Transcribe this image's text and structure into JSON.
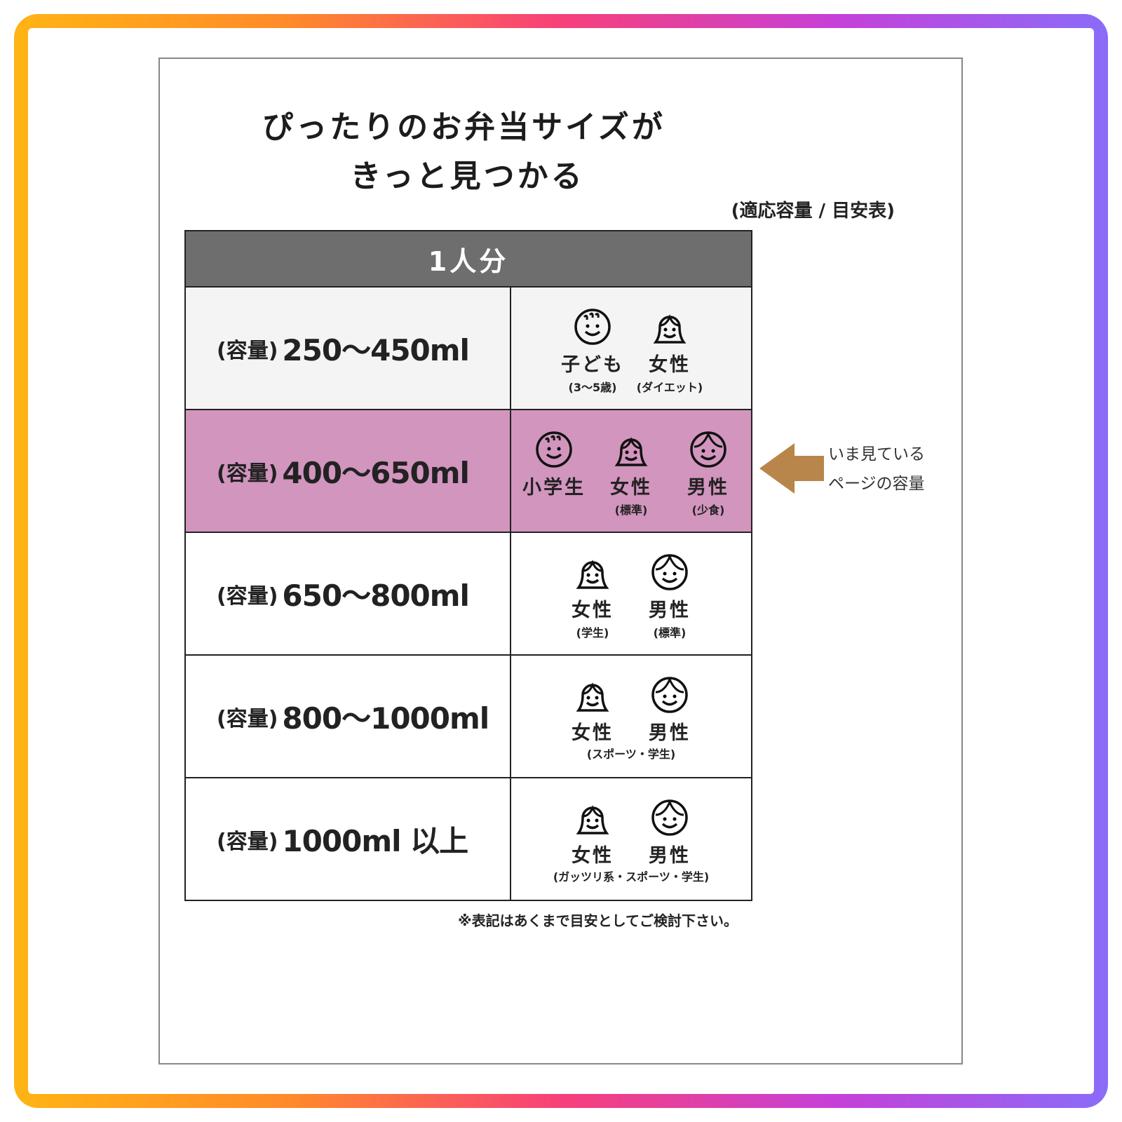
{
  "colors": {
    "header_bg": "#6e6e6e",
    "highlight_row": "#d295be",
    "first_row": "#f3f4f3",
    "arrow": "#b8864a"
  },
  "title": {
    "line1": "ぴったりのお弁当サイズが",
    "line2": "きっと見つかる",
    "subtitle": "(適応容量 / 目安表)"
  },
  "table": {
    "header": "1人分",
    "prefix": "(容量)",
    "rows": [
      {
        "value": "250〜450ml",
        "highlighted": false,
        "people": [
          {
            "icon": "child-face",
            "label": "子ども",
            "note": "(3〜5歳)"
          },
          {
            "icon": "woman-face",
            "label": "女性",
            "note": "(ダイエット)"
          }
        ]
      },
      {
        "value": "400〜650ml",
        "highlighted": true,
        "people": [
          {
            "icon": "child-face",
            "label": "小学生",
            "note": ""
          },
          {
            "icon": "woman-face",
            "label": "女性",
            "note": "(標準)"
          },
          {
            "icon": "man-face",
            "label": "男性",
            "note": "(少食)"
          }
        ]
      },
      {
        "value": "650〜800ml",
        "highlighted": false,
        "people": [
          {
            "icon": "woman-face",
            "label": "女性",
            "note": "(学生)"
          },
          {
            "icon": "man-face",
            "label": "男性",
            "note": "(標準)"
          }
        ]
      },
      {
        "value": "800〜1000ml",
        "highlighted": false,
        "shared_note": "(スポーツ・学生)",
        "people": [
          {
            "icon": "woman-face",
            "label": "女性",
            "note": ""
          },
          {
            "icon": "man-face",
            "label": "男性",
            "note": ""
          }
        ]
      },
      {
        "value": "1000ml 以上",
        "highlighted": false,
        "shared_note": "(ガッツリ系・スポーツ・学生)",
        "people": [
          {
            "icon": "woman-face",
            "label": "女性",
            "note": ""
          },
          {
            "icon": "man-face",
            "label": "男性",
            "note": ""
          }
        ]
      }
    ]
  },
  "footnote": "※表記はあくまで目安としてご検討下さい。",
  "callout": {
    "line1": "いま見ている",
    "line2": "ページの容量"
  }
}
